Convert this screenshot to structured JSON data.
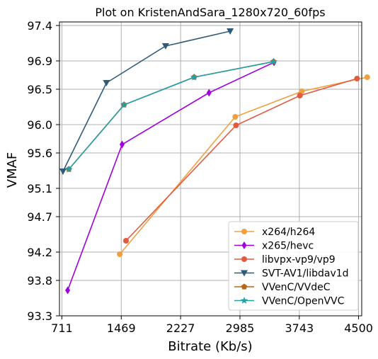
{
  "chart_data": {
    "type": "line",
    "title": "Plot on KristenAndSara_1280x720_60fps",
    "xlabel": "Bitrate (Kb/s)",
    "ylabel": "VMAF",
    "xlim": [
      680,
      4540
    ],
    "ylim": [
      93.3,
      97.45
    ],
    "xticks": [
      711,
      1469,
      2227,
      2985,
      3743,
      4500
    ],
    "yticks": [
      93.3,
      93.8,
      94.2,
      94.7,
      95.1,
      95.6,
      96.0,
      96.5,
      96.9,
      97.4
    ],
    "ytick_labels": [
      "93.3",
      "93.8",
      "94.2",
      "94.7",
      "95.1",
      "95.6",
      "96.0",
      "96.5",
      "96.9",
      "97.4"
    ],
    "grid": true,
    "legend_position": "lower-right",
    "series": [
      {
        "name": "x264/h264",
        "color": "#f0a040",
        "marker": "circle",
        "x": [
          1450,
          2925,
          3775,
          4610
        ],
        "y": [
          94.17,
          96.11,
          96.47,
          96.67
        ]
      },
      {
        "name": "x265/hevc",
        "color": "#a000e0",
        "marker": "diamond",
        "x": [
          785,
          1480,
          2590,
          3420
        ],
        "y": [
          93.66,
          95.72,
          96.45,
          96.88
        ]
      },
      {
        "name": "libvpx-vp9/vp9",
        "color": "#e05a40",
        "marker": "circle",
        "x": [
          1530,
          2935,
          3750,
          4480
        ],
        "y": [
          94.36,
          95.99,
          96.41,
          96.65
        ]
      },
      {
        "name": "SVT-AV1/libdav1d",
        "color": "#2f5b7a",
        "marker": "triangle-down",
        "x": [
          725,
          1280,
          2035,
          2860
        ],
        "y": [
          95.34,
          96.59,
          97.11,
          97.32
        ]
      },
      {
        "name": "VVenC/VVdeC",
        "color": "#b8661a",
        "marker": "pentagon",
        "x": [
          800,
          1505,
          2400,
          3415
        ],
        "y": [
          95.37,
          96.28,
          96.67,
          96.89
        ]
      },
      {
        "name": "VVenC/OpenVVC",
        "color": "#20a0a8",
        "marker": "star",
        "x": [
          800,
          1505,
          2400,
          3415
        ],
        "y": [
          95.37,
          96.28,
          96.67,
          96.89
        ]
      }
    ]
  }
}
